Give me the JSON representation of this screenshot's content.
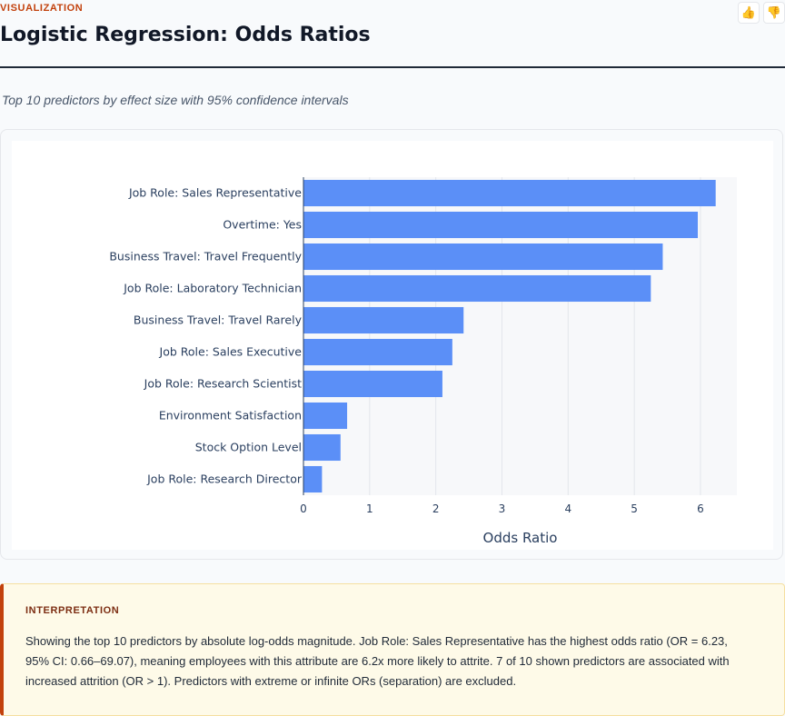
{
  "header": {
    "kicker": "VISUALIZATION",
    "title": "Logistic Regression: Odds Ratios",
    "subtitle": "Top 10 predictors by effect size with 95% confidence intervals"
  },
  "feedback": {
    "up_icon": "thumbs-up-icon",
    "down_icon": "thumbs-down-icon",
    "up_glyph": "👍",
    "down_glyph": "👎"
  },
  "chart_data": {
    "type": "bar",
    "orientation": "horizontal",
    "categories": [
      "Job Role: Research Director",
      "Stock Option Level",
      "Environment Satisfaction",
      "Job Role: Research Scientist",
      "Job Role: Sales Executive",
      "Business Travel: Travel Rarely",
      "Job Role: Laboratory Technician",
      "Business Travel: Travel Frequently",
      "Overtime: Yes",
      "Job Role: Sales Representative"
    ],
    "values": [
      0.28,
      0.56,
      0.66,
      2.1,
      2.25,
      2.42,
      5.25,
      5.43,
      5.96,
      6.23
    ],
    "xlabel": "Odds Ratio",
    "ylabel": "",
    "xlim": [
      0,
      6.55
    ],
    "xticks": [
      0,
      1,
      2,
      3,
      4,
      5,
      6
    ],
    "grid": true,
    "bar_color": "#5b8ff7"
  },
  "interpretation": {
    "label": "INTERPRETATION",
    "text": "Showing the top 10 predictors by absolute log-odds magnitude. Job Role: Sales Representative has the highest odds ratio (OR = 6.23, 95% CI: 0.66–69.07), meaning employees with this attribute are 6.2x more likely to attrite. 7 of 10 shown predictors are associated with increased attrition (OR > 1). Predictors with extreme or infinite ORs (separation) are excluded."
  }
}
